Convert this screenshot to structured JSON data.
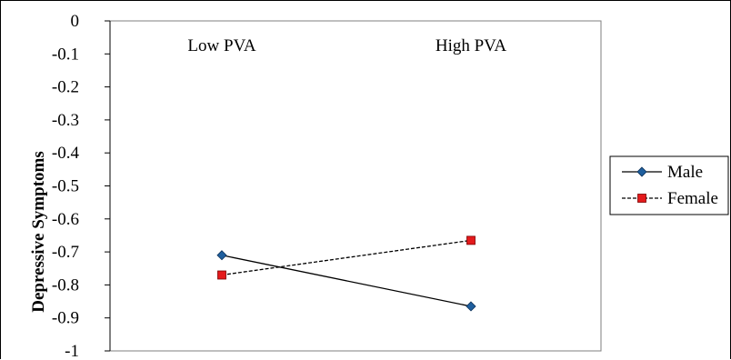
{
  "chart_data": {
    "type": "line",
    "categories": [
      "Low PVA",
      "High PVA"
    ],
    "ylabel": "Depressive Symptoms",
    "xlabel": "",
    "ylim": [
      -1,
      0
    ],
    "yticks": [
      "0",
      "-0.1",
      "-0.2",
      "-0.3",
      "-0.4",
      "-0.5",
      "-0.6",
      "-0.7",
      "-0.8",
      "-0.9",
      "-1"
    ],
    "ytick_values": [
      0,
      -0.1,
      -0.2,
      -0.3,
      -0.4,
      -0.5,
      -0.6,
      -0.7,
      -0.8,
      -0.9,
      -1
    ],
    "grid": false,
    "legend_position": "right",
    "series": [
      {
        "name": "Male",
        "values": [
          -0.71,
          -0.865
        ],
        "color": "#1f5f9e",
        "marker": "diamond",
        "line_style": "solid"
      },
      {
        "name": "Female",
        "values": [
          -0.77,
          -0.665
        ],
        "color": "#e41a1c",
        "marker": "square",
        "line_style": "dashed"
      }
    ]
  }
}
